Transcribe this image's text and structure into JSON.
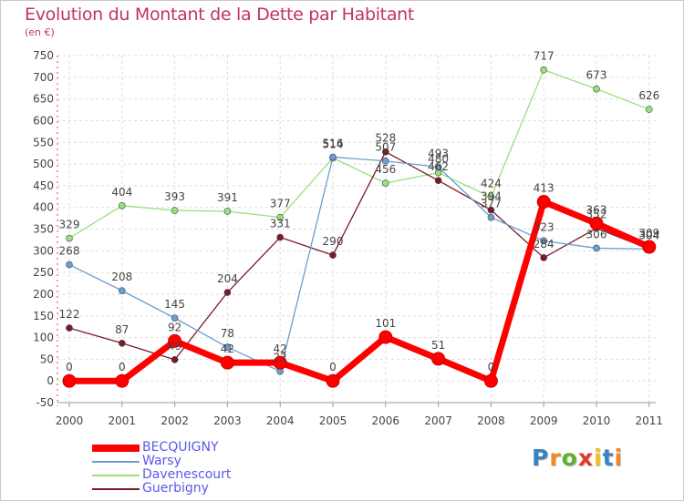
{
  "chart_data": {
    "type": "line",
    "title": "Evolution du Montant de la Dette par Habitant",
    "subtitle": "(en €)",
    "categories": [
      "2000",
      "2001",
      "2002",
      "2003",
      "2004",
      "2005",
      "2006",
      "2007",
      "2008",
      "2009",
      "2010",
      "2011"
    ],
    "yticks": [
      -50,
      0,
      50,
      100,
      150,
      200,
      250,
      300,
      350,
      400,
      450,
      500,
      550,
      600,
      650,
      700,
      750
    ],
    "ylim": [
      -50,
      750
    ],
    "grid": true,
    "series": [
      {
        "name": "BECQUIGNY",
        "color": "#ff0000",
        "values": [
          0,
          0,
          92,
          42,
          42,
          0,
          101,
          51,
          0,
          413,
          363,
          309
        ]
      },
      {
        "name": "Warsy",
        "color": "#6a9fd4",
        "values": [
          268,
          208,
          145,
          78,
          22,
          516,
          507,
          493,
          377,
          323,
          306,
          304
        ]
      },
      {
        "name": "Davenescourt",
        "color": "#99e07a",
        "values": [
          329,
          404,
          393,
          391,
          377,
          514,
          456,
          480,
          424,
          717,
          673,
          626
        ]
      },
      {
        "name": "Guerbigny",
        "color": "#7a1a2a",
        "values": [
          122,
          87,
          49,
          204,
          331,
          290,
          528,
          462,
          394,
          284,
          352,
          304
        ]
      }
    ],
    "data_labels": [
      {
        "series": "BECQUIGNY",
        "labels": [
          "0",
          "0",
          "92",
          "42",
          "42",
          "0",
          "101",
          "51",
          "0",
          "413",
          "363",
          "309"
        ]
      },
      {
        "series": "Warsy",
        "labels": [
          "268",
          "208",
          "145",
          "78",
          "22",
          "516",
          "507",
          "493",
          "377",
          "323",
          "306",
          "304"
        ]
      },
      {
        "series": "Davenescourt",
        "labels": [
          "329",
          "404",
          "393",
          "391",
          "377",
          "514",
          "456",
          "480",
          "424",
          "717",
          "673",
          "626"
        ]
      },
      {
        "series": "Guerbigny",
        "labels": [
          "122",
          "87",
          "49",
          "204",
          "331",
          "290",
          "528",
          "462",
          "394",
          "284",
          "352",
          "304"
        ]
      }
    ]
  },
  "legend": {
    "items": [
      "BECQUIGNY",
      "Warsy",
      "Davenescourt",
      "Guerbigny"
    ]
  },
  "logo": {
    "letters": [
      "P",
      "r",
      "o",
      "x",
      "i",
      "t",
      "i"
    ],
    "colors": [
      "#3b82c4",
      "#f08a24",
      "#5ab030",
      "#e03a2a",
      "#f0c020",
      "#3b82c4",
      "#f08a24"
    ]
  }
}
